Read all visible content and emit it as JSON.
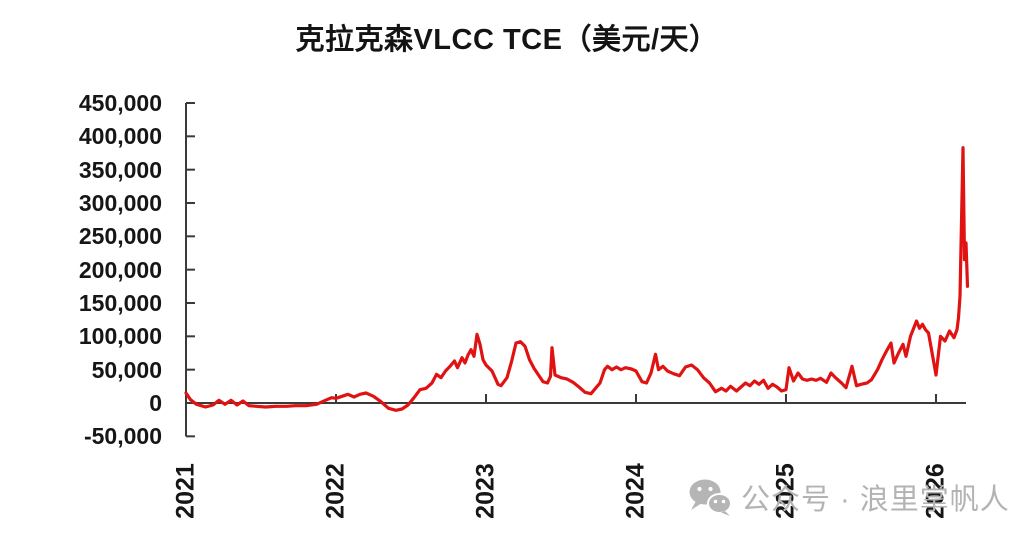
{
  "title": "克拉克森VLCC TCE（美元/天）",
  "watermark": {
    "icon": "wechat-icon",
    "text": "公众号 · 浪里掌帆人"
  },
  "colors": {
    "line": "#e01212",
    "axis": "#3a3a3a",
    "text": "#161616",
    "watermark": "#b5b5b5",
    "background": "#ffffff"
  },
  "chart_data": {
    "type": "line",
    "title": "克拉克森VLCC TCE（美元/天）",
    "xlabel": "",
    "ylabel": "",
    "xlim": [
      2021,
      2026.3
    ],
    "ylim": [
      -50000,
      450000
    ],
    "grid": false,
    "legend": "none",
    "yticks": {
      "values": [
        450000,
        400000,
        350000,
        300000,
        250000,
        200000,
        150000,
        100000,
        50000,
        0,
        -50000
      ],
      "labels": [
        "450,000",
        "400,000",
        "350,000",
        "300,000",
        "250,000",
        "200,000",
        "150,000",
        "100,000",
        "50,000",
        "0",
        "-50,000"
      ]
    },
    "xticks": {
      "values": [
        2021,
        2022,
        2023,
        2024,
        2025,
        2026
      ],
      "labels": [
        "2021",
        "2022",
        "2023",
        "2024",
        "2025",
        "2026"
      ]
    },
    "series": [
      {
        "name": "克拉克森VLCC TCE",
        "color": "#e01212",
        "points": [
          [
            2021.0,
            15000
          ],
          [
            2021.03,
            5000
          ],
          [
            2021.07,
            -2000
          ],
          [
            2021.13,
            -6000
          ],
          [
            2021.18,
            -3000
          ],
          [
            2021.22,
            4000
          ],
          [
            2021.26,
            -2000
          ],
          [
            2021.3,
            4000
          ],
          [
            2021.34,
            -3000
          ],
          [
            2021.38,
            3000
          ],
          [
            2021.42,
            -4000
          ],
          [
            2021.47,
            -5000
          ],
          [
            2021.53,
            -6000
          ],
          [
            2021.6,
            -5000
          ],
          [
            2021.67,
            -5000
          ],
          [
            2021.73,
            -4000
          ],
          [
            2021.8,
            -4000
          ],
          [
            2021.87,
            -2000
          ],
          [
            2021.93,
            4000
          ],
          [
            2021.97,
            8000
          ],
          [
            2022.0,
            7000
          ],
          [
            2022.04,
            10000
          ],
          [
            2022.08,
            13000
          ],
          [
            2022.12,
            9000
          ],
          [
            2022.16,
            13000
          ],
          [
            2022.2,
            15000
          ],
          [
            2022.25,
            10000
          ],
          [
            2022.3,
            2000
          ],
          [
            2022.35,
            -8000
          ],
          [
            2022.4,
            -11000
          ],
          [
            2022.44,
            -9000
          ],
          [
            2022.48,
            -3000
          ],
          [
            2022.52,
            8000
          ],
          [
            2022.56,
            20000
          ],
          [
            2022.6,
            22000
          ],
          [
            2022.64,
            30000
          ],
          [
            2022.67,
            43000
          ],
          [
            2022.7,
            38000
          ],
          [
            2022.73,
            48000
          ],
          [
            2022.76,
            55000
          ],
          [
            2022.79,
            63000
          ],
          [
            2022.81,
            53000
          ],
          [
            2022.84,
            68000
          ],
          [
            2022.86,
            60000
          ],
          [
            2022.88,
            72000
          ],
          [
            2022.9,
            80000
          ],
          [
            2022.92,
            70000
          ],
          [
            2022.94,
            103000
          ],
          [
            2022.96,
            88000
          ],
          [
            2022.98,
            65000
          ],
          [
            2023.0,
            57000
          ],
          [
            2023.04,
            48000
          ],
          [
            2023.08,
            28000
          ],
          [
            2023.1,
            26000
          ],
          [
            2023.14,
            38000
          ],
          [
            2023.17,
            62000
          ],
          [
            2023.2,
            90000
          ],
          [
            2023.23,
            92000
          ],
          [
            2023.26,
            85000
          ],
          [
            2023.29,
            65000
          ],
          [
            2023.32,
            52000
          ],
          [
            2023.35,
            42000
          ],
          [
            2023.38,
            32000
          ],
          [
            2023.41,
            30000
          ],
          [
            2023.43,
            40000
          ],
          [
            2023.44,
            83000
          ],
          [
            2023.46,
            42000
          ],
          [
            2023.5,
            38000
          ],
          [
            2023.54,
            36000
          ],
          [
            2023.58,
            31000
          ],
          [
            2023.62,
            24000
          ],
          [
            2023.66,
            16000
          ],
          [
            2023.7,
            14000
          ],
          [
            2023.73,
            22000
          ],
          [
            2023.76,
            30000
          ],
          [
            2023.79,
            50000
          ],
          [
            2023.81,
            55000
          ],
          [
            2023.84,
            50000
          ],
          [
            2023.87,
            54000
          ],
          [
            2023.9,
            50000
          ],
          [
            2023.93,
            53000
          ],
          [
            2023.97,
            51000
          ],
          [
            2024.0,
            48000
          ],
          [
            2024.04,
            32000
          ],
          [
            2024.07,
            30000
          ],
          [
            2024.1,
            45000
          ],
          [
            2024.13,
            73000
          ],
          [
            2024.15,
            50000
          ],
          [
            2024.18,
            55000
          ],
          [
            2024.21,
            48000
          ],
          [
            2024.25,
            44000
          ],
          [
            2024.29,
            41000
          ],
          [
            2024.33,
            54000
          ],
          [
            2024.37,
            57000
          ],
          [
            2024.41,
            50000
          ],
          [
            2024.45,
            38000
          ],
          [
            2024.49,
            30000
          ],
          [
            2024.53,
            17000
          ],
          [
            2024.57,
            22000
          ],
          [
            2024.6,
            18000
          ],
          [
            2024.63,
            25000
          ],
          [
            2024.67,
            18000
          ],
          [
            2024.7,
            24000
          ],
          [
            2024.73,
            30000
          ],
          [
            2024.76,
            26000
          ],
          [
            2024.79,
            33000
          ],
          [
            2024.82,
            28000
          ],
          [
            2024.85,
            34000
          ],
          [
            2024.88,
            22000
          ],
          [
            2024.91,
            28000
          ],
          [
            2024.94,
            24000
          ],
          [
            2024.97,
            18000
          ],
          [
            2025.0,
            20000
          ],
          [
            2025.02,
            53000
          ],
          [
            2025.05,
            33000
          ],
          [
            2025.08,
            45000
          ],
          [
            2025.11,
            36000
          ],
          [
            2025.14,
            34000
          ],
          [
            2025.17,
            36000
          ],
          [
            2025.2,
            34000
          ],
          [
            2025.23,
            37000
          ],
          [
            2025.27,
            31000
          ],
          [
            2025.3,
            45000
          ],
          [
            2025.33,
            38000
          ],
          [
            2025.37,
            30000
          ],
          [
            2025.4,
            23000
          ],
          [
            2025.44,
            55000
          ],
          [
            2025.47,
            26000
          ],
          [
            2025.5,
            28000
          ],
          [
            2025.54,
            30000
          ],
          [
            2025.57,
            35000
          ],
          [
            2025.61,
            50000
          ],
          [
            2025.64,
            65000
          ],
          [
            2025.67,
            78000
          ],
          [
            2025.7,
            90000
          ],
          [
            2025.72,
            60000
          ],
          [
            2025.75,
            75000
          ],
          [
            2025.78,
            88000
          ],
          [
            2025.8,
            70000
          ],
          [
            2025.83,
            100000
          ],
          [
            2025.87,
            123000
          ],
          [
            2025.89,
            112000
          ],
          [
            2025.91,
            118000
          ],
          [
            2025.93,
            110000
          ],
          [
            2025.95,
            105000
          ],
          [
            2025.97,
            80000
          ],
          [
            2026.0,
            42000
          ],
          [
            2026.03,
            100000
          ],
          [
            2026.06,
            93000
          ],
          [
            2026.09,
            108000
          ],
          [
            2026.12,
            98000
          ],
          [
            2026.14,
            110000
          ],
          [
            2026.15,
            128000
          ],
          [
            2026.16,
            160000
          ],
          [
            2026.18,
            383000
          ],
          [
            2026.19,
            215000
          ],
          [
            2026.2,
            240000
          ],
          [
            2026.21,
            175000
          ]
        ]
      }
    ]
  }
}
